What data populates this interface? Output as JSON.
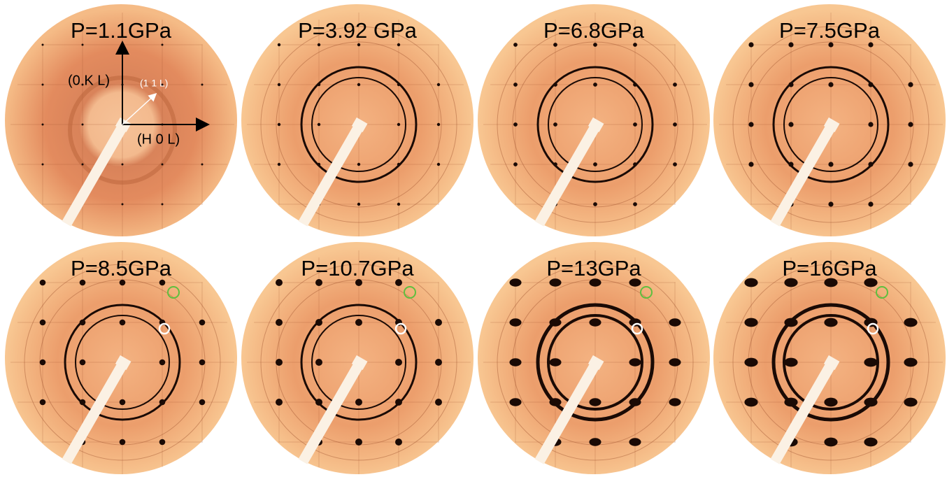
{
  "panels": [
    {
      "label": "P=1.1GPa"
    },
    {
      "label": "P=3.92 GPa"
    },
    {
      "label": "P=6.8GPa"
    },
    {
      "label": "P=7.5GPa"
    },
    {
      "label": "P=8.5GPa"
    },
    {
      "label": "P=10.7GPa"
    },
    {
      "label": "P=13GPa"
    },
    {
      "label": "P=16GPa"
    }
  ],
  "annotations": {
    "zero_k_l": "(0 K L)",
    "one_one_l": "(1 1 L)",
    "h_zero_l": "(H 0 L)"
  }
}
